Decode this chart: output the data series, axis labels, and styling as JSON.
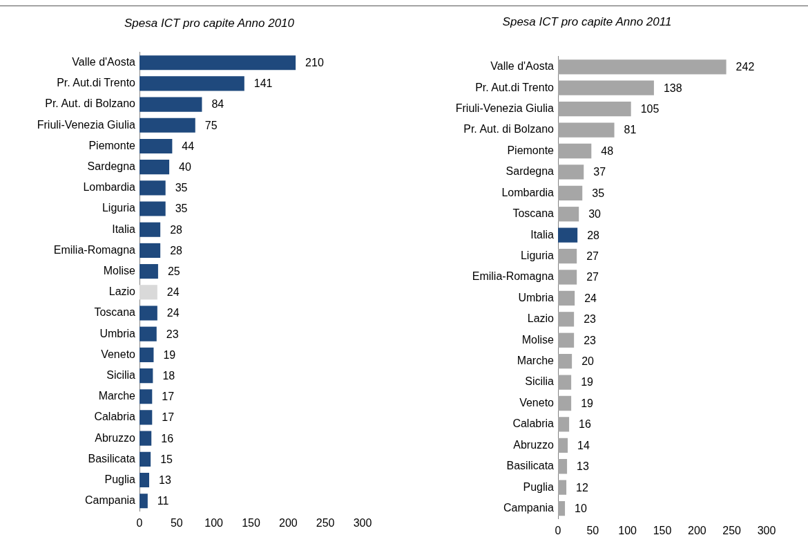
{
  "chart_data": [
    {
      "type": "bar",
      "orientation": "horizontal",
      "title": "Spesa ICT pro capite Anno 2010",
      "categories": [
        "Valle d'Aosta",
        "Pr. Aut.di Trento",
        "Pr. Aut. di Bolzano",
        "Friuli-Venezia Giulia",
        "Piemonte",
        "Sardegna",
        "Lombardia",
        "Liguria",
        "Italia",
        "Emilia-Romagna",
        "Molise",
        "Lazio",
        "Toscana",
        "Umbria",
        "Veneto",
        "Sicilia",
        "Marche",
        "Calabria",
        "Abruzzo",
        "Basilicata",
        "Puglia",
        "Campania"
      ],
      "values": [
        210,
        141,
        84,
        75,
        44,
        40,
        35,
        35,
        28,
        28,
        25,
        24,
        24,
        23,
        19,
        18,
        17,
        17,
        16,
        15,
        13,
        11
      ],
      "colors": [
        "#1f497d",
        "#1f497d",
        "#1f497d",
        "#1f497d",
        "#1f497d",
        "#1f497d",
        "#1f497d",
        "#1f497d",
        "#1f497d",
        "#1f497d",
        "#1f497d",
        "#d9d9d9",
        "#1f497d",
        "#1f497d",
        "#1f497d",
        "#1f497d",
        "#1f497d",
        "#1f497d",
        "#1f497d",
        "#1f497d",
        "#1f497d",
        "#1f497d"
      ],
      "xlim": [
        0,
        300
      ],
      "xticks": [
        0,
        50,
        100,
        150,
        200,
        250,
        300
      ],
      "data_labels": true
    },
    {
      "type": "bar",
      "orientation": "horizontal",
      "title": "Spesa ICT pro capite Anno 2011",
      "categories": [
        "Valle d'Aosta",
        "Pr. Aut.di Trento",
        "Friuli-Venezia Giulia",
        "Pr. Aut. di Bolzano",
        "Piemonte",
        "Sardegna",
        "Lombardia",
        "Toscana",
        "Italia",
        "Liguria",
        "Emilia-Romagna",
        "Umbria",
        "Lazio",
        "Molise",
        "Marche",
        "Sicilia",
        "Veneto",
        "Calabria",
        "Abruzzo",
        "Basilicata",
        "Puglia",
        "Campania"
      ],
      "values": [
        242,
        138,
        105,
        81,
        48,
        37,
        35,
        30,
        28,
        27,
        27,
        24,
        23,
        23,
        20,
        19,
        19,
        16,
        14,
        13,
        12,
        10
      ],
      "colors": [
        "#a6a6a6",
        "#a6a6a6",
        "#a6a6a6",
        "#a6a6a6",
        "#a6a6a6",
        "#a6a6a6",
        "#a6a6a6",
        "#a6a6a6",
        "#1f497d",
        "#a6a6a6",
        "#a6a6a6",
        "#a6a6a6",
        "#a6a6a6",
        "#a6a6a6",
        "#a6a6a6",
        "#a6a6a6",
        "#a6a6a6",
        "#a6a6a6",
        "#a6a6a6",
        "#a6a6a6",
        "#a6a6a6",
        "#a6a6a6"
      ],
      "xlim": [
        0,
        300
      ],
      "xticks": [
        0,
        50,
        100,
        150,
        200,
        250,
        300
      ],
      "data_labels": true
    }
  ]
}
